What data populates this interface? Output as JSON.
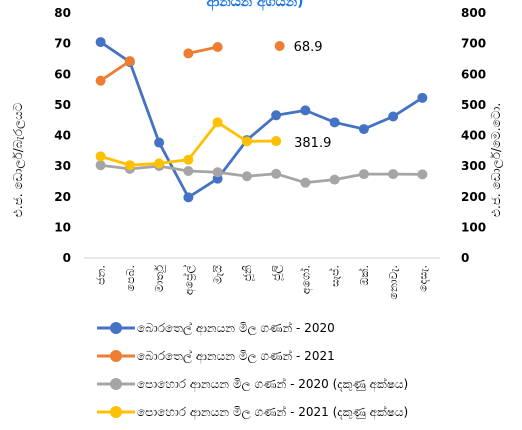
{
  "chart_data": {
    "type": "line",
    "title": "ආනයන අගයන්)",
    "categories": [
      "ජන.",
      "පෙබ.",
      "මාර්තු",
      "අප්‍රේල්",
      "මැයි",
      "ජූනි",
      "ජූලි",
      "අගෝ.",
      "සැප්.",
      "ඔක්.",
      "නොවැ.",
      "දෙසැ."
    ],
    "y_left": {
      "label": "එ.ජ. ඩොලර්/බැරලයට",
      "min": 0,
      "max": 80,
      "ticks": [
        0,
        10,
        20,
        30,
        40,
        50,
        60,
        70,
        80
      ]
    },
    "y_right": {
      "label": "එ.ජ. ඩොලර්/මෙ.ටො.",
      "min": 0,
      "max": 800,
      "ticks": [
        0,
        100,
        200,
        300,
        400,
        500,
        600,
        700,
        800
      ]
    },
    "grid": false,
    "legend_position": "bottom",
    "series": [
      {
        "name": "බොරතෙල් ආනයන මිල ගණන් - 2020",
        "axis": "left",
        "color": "#4472C4",
        "values": [
          70.5,
          64,
          37.7,
          19.8,
          25.9,
          38.5,
          46.6,
          48.2,
          44.3,
          42.1,
          46.2,
          52.3
        ]
      },
      {
        "name": "බොරතෙල් ආනයන මිල ගණන් - 2021",
        "axis": "left",
        "color": "#ED7D31",
        "values": [
          57.9,
          64.3,
          null,
          66.8,
          68.9,
          null,
          null,
          null,
          null,
          null,
          null,
          null
        ]
      },
      {
        "name": "පොහොර ආනයන මිල ගණන් - 2020 (දකුණු අක්ෂය)",
        "axis": "right",
        "color": "#A5A5A5",
        "values": [
          303,
          291,
          300,
          284,
          280,
          267,
          275,
          246,
          256,
          274,
          274,
          273
        ]
      },
      {
        "name": "පොහොර ආනයන මිල ගණන් - 2021 (දකුණු අක්ෂය)",
        "axis": "right",
        "color": "#FFC000",
        "values": [
          332,
          303,
          309,
          321,
          443,
          381,
          381.9,
          null,
          null,
          null,
          null,
          null
        ]
      }
    ],
    "annotations": [
      {
        "text": "68.9",
        "series": 1,
        "point": 4,
        "marker_color": "#ED7D31"
      },
      {
        "text": "381.9",
        "series": 3,
        "point": 6
      }
    ]
  }
}
